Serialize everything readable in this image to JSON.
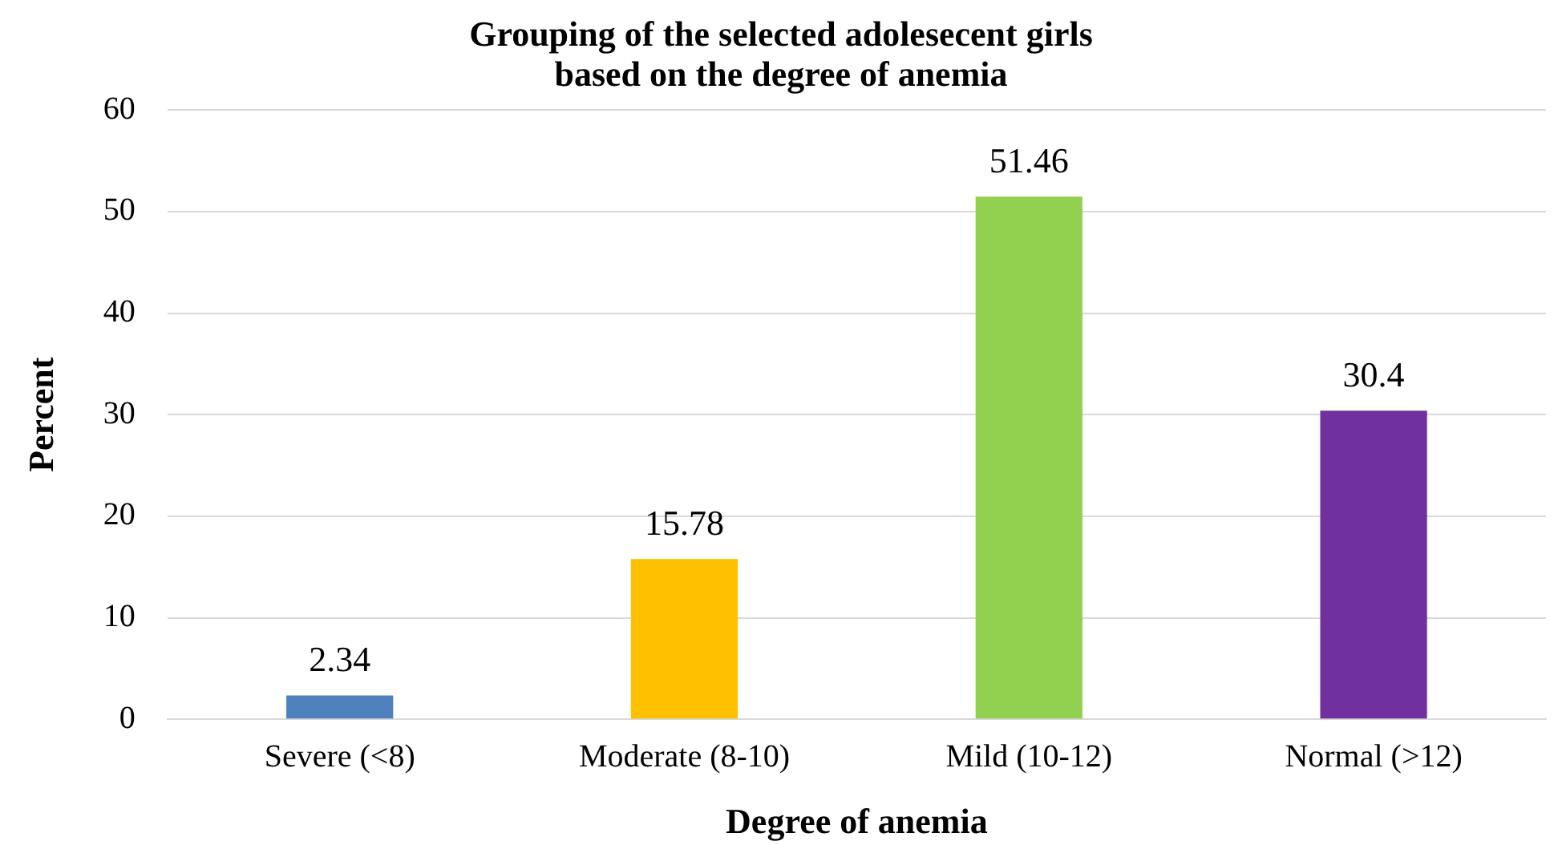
{
  "chart_data": {
    "type": "bar",
    "title": "Grouping of the selected adolesecent girls based on the degree of anemia",
    "xlabel": "Degree of anemia",
    "ylabel": "Percent",
    "categories": [
      "Severe (<8)",
      "Moderate (8-10)",
      "Mild (10-12)",
      "Normal (>12)"
    ],
    "values": [
      2.34,
      15.78,
      51.46,
      30.4
    ],
    "colors": [
      "#4f81bd",
      "#ffc000",
      "#92d050",
      "#7030a0"
    ],
    "ylim": [
      0,
      60
    ],
    "yticks": [
      0,
      10,
      20,
      30,
      40,
      50,
      60
    ],
    "grid": "y",
    "legend": false,
    "data_labels": true
  }
}
